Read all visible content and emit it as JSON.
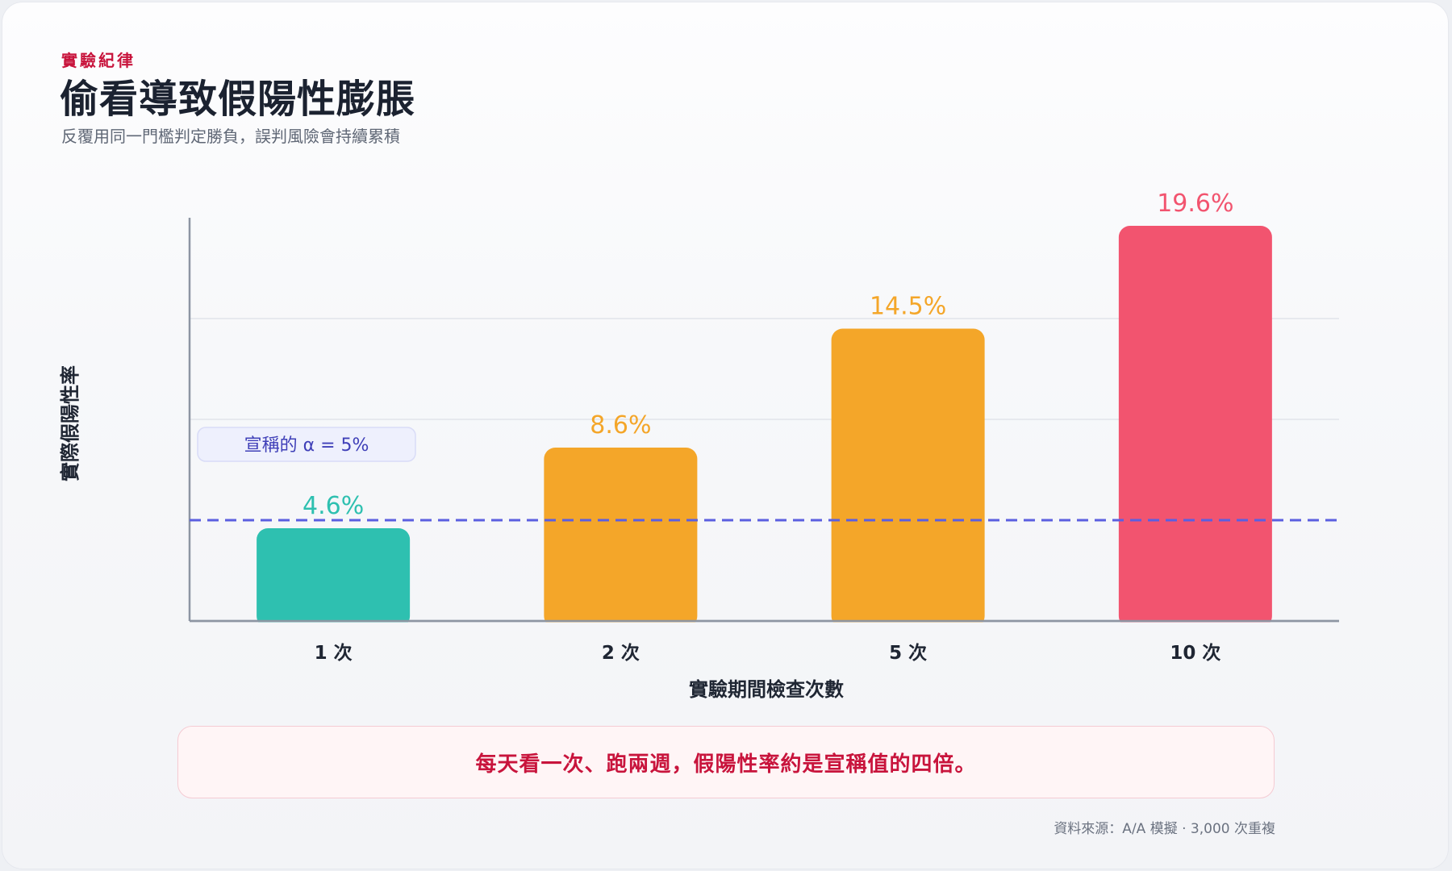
{
  "header": {
    "eyebrow": "實驗紀律",
    "title": "偷看導致假陽性膨脹",
    "subtitle": "反覆用同一門檻判定勝負，誤判風險會持續累積"
  },
  "chart_data": {
    "type": "bar",
    "categories": [
      "1 次",
      "2 次",
      "5 次",
      "10 次"
    ],
    "values": [
      4.6,
      8.6,
      14.5,
      19.6
    ],
    "value_labels": [
      "4.6%",
      "8.6%",
      "14.5%",
      "19.6%"
    ],
    "bar_colors": [
      "#2ec0b0",
      "#f4a629",
      "#f4a629",
      "#f2546f"
    ],
    "xlabel": "實驗期間檢查次數",
    "ylabel": "實際假陽性率",
    "ylim": [
      0,
      20
    ],
    "grid": true,
    "reference_line": {
      "value": 5,
      "label": "宣稱的 α = 5%",
      "color": "#5b5fe0"
    }
  },
  "callout": "每天看一次、跑兩週，假陽性率約是宣稱值的四倍。",
  "source": "資料來源：A/A 模擬 · 3,000 次重複"
}
